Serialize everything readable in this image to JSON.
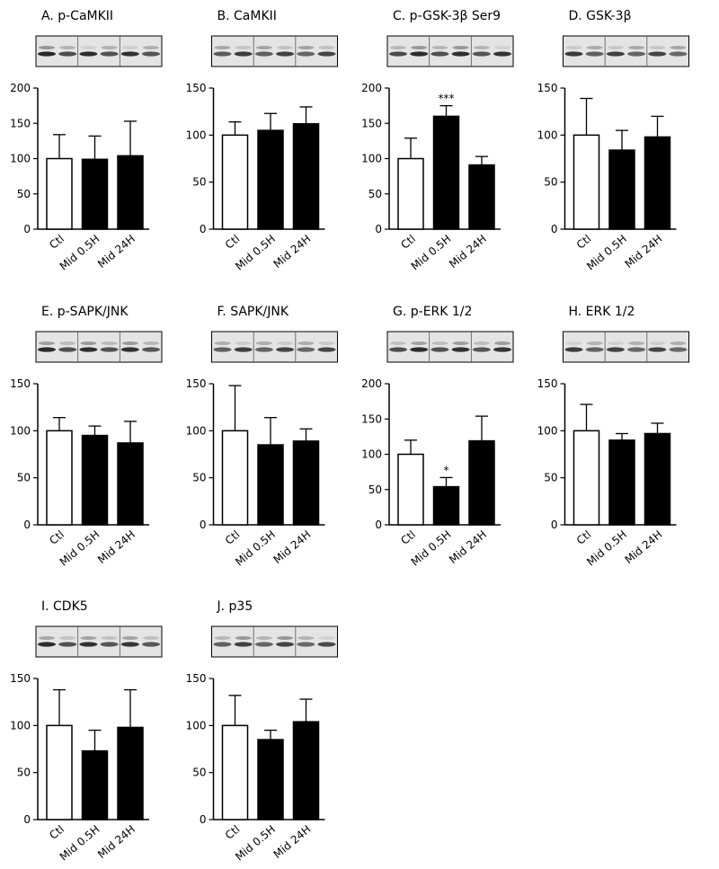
{
  "chart_data": [
    {
      "type": "bar",
      "title": "A. p-CaMKII",
      "categories": [
        "Ctl",
        "Mid 0.5H",
        "Mid 24H"
      ],
      "values": [
        100,
        99,
        104
      ],
      "errors": [
        34,
        33,
        49
      ],
      "colors": [
        "#ffffff",
        "#000000",
        "#000000"
      ],
      "significance": [
        null,
        null,
        null
      ],
      "ylim": [
        0,
        200
      ],
      "yticks": [
        0,
        50,
        100,
        150,
        200
      ]
    },
    {
      "type": "bar",
      "title": "B. CaMKII",
      "categories": [
        "Ctl",
        "Mid 0.5H",
        "Mid 24H"
      ],
      "values": [
        100,
        105,
        112
      ],
      "errors": [
        14,
        18,
        18
      ],
      "colors": [
        "#ffffff",
        "#000000",
        "#000000"
      ],
      "significance": [
        null,
        null,
        null
      ],
      "ylim": [
        0,
        150
      ],
      "yticks": [
        0,
        50,
        100,
        150
      ]
    },
    {
      "type": "bar",
      "title": "C. p-GSK-3β Ser9",
      "categories": [
        "Ctl",
        "Mid 0.5H",
        "Mid 24H"
      ],
      "values": [
        100,
        160,
        91
      ],
      "errors": [
        29,
        15,
        12
      ],
      "colors": [
        "#ffffff",
        "#000000",
        "#000000"
      ],
      "significance": [
        null,
        "***",
        null
      ],
      "ylim": [
        0,
        200
      ],
      "yticks": [
        0,
        50,
        100,
        150,
        200
      ]
    },
    {
      "type": "bar",
      "title": "D. GSK-3β",
      "categories": [
        "Ctl",
        "Mid 0.5H",
        "Mid 24H"
      ],
      "values": [
        100,
        84,
        98
      ],
      "errors": [
        39,
        21,
        22
      ],
      "colors": [
        "#ffffff",
        "#000000",
        "#000000"
      ],
      "significance": [
        null,
        null,
        null
      ],
      "ylim": [
        0,
        150
      ],
      "yticks": [
        0,
        50,
        100,
        150
      ]
    },
    {
      "type": "bar",
      "title": "E. p-SAPK/JNK",
      "categories": [
        "Ctl",
        "Mid 0.5H",
        "Mid 24H"
      ],
      "values": [
        100,
        95,
        87
      ],
      "errors": [
        14,
        10,
        23
      ],
      "colors": [
        "#ffffff",
        "#000000",
        "#000000"
      ],
      "significance": [
        null,
        null,
        null
      ],
      "ylim": [
        0,
        150
      ],
      "yticks": [
        0,
        50,
        100,
        150
      ]
    },
    {
      "type": "bar",
      "title": "F. SAPK/JNK",
      "categories": [
        "Ctl",
        "Mid 0.5H",
        "Mid 24H"
      ],
      "values": [
        100,
        85,
        89
      ],
      "errors": [
        48,
        29,
        13
      ],
      "colors": [
        "#ffffff",
        "#000000",
        "#000000"
      ],
      "significance": [
        null,
        null,
        null
      ],
      "ylim": [
        0,
        150
      ],
      "yticks": [
        0,
        50,
        100,
        150
      ]
    },
    {
      "type": "bar",
      "title": "G. p-ERK 1/2",
      "categories": [
        "Ctl",
        "Mid 0.5H",
        "Mid 24H"
      ],
      "values": [
        100,
        54,
        119
      ],
      "errors": [
        20,
        13,
        35
      ],
      "colors": [
        "#ffffff",
        "#000000",
        "#000000"
      ],
      "significance": [
        null,
        "*",
        null
      ],
      "ylim": [
        0,
        200
      ],
      "yticks": [
        0,
        50,
        100,
        150,
        200
      ]
    },
    {
      "type": "bar",
      "title": "H. ERK 1/2",
      "categories": [
        "Ctl",
        "Mid 0.5H",
        "Mid 24H"
      ],
      "values": [
        100,
        90,
        97
      ],
      "errors": [
        28,
        7,
        11
      ],
      "colors": [
        "#ffffff",
        "#000000",
        "#000000"
      ],
      "significance": [
        null,
        null,
        null
      ],
      "ylim": [
        0,
        150
      ],
      "yticks": [
        0,
        50,
        100,
        150
      ]
    },
    {
      "type": "bar",
      "title": "I. CDK5",
      "categories": [
        "Ctl",
        "Mid 0.5H",
        "Mid 24H"
      ],
      "values": [
        100,
        73,
        98
      ],
      "errors": [
        38,
        22,
        40
      ],
      "colors": [
        "#ffffff",
        "#000000",
        "#000000"
      ],
      "significance": [
        null,
        null,
        null
      ],
      "ylim": [
        0,
        150
      ],
      "yticks": [
        0,
        50,
        100,
        150
      ]
    },
    {
      "type": "bar",
      "title": "J. p35",
      "categories": [
        "Ctl",
        "Mid 0.5H",
        "Mid 24H"
      ],
      "values": [
        100,
        85,
        104
      ],
      "errors": [
        32,
        10,
        24
      ],
      "colors": [
        "#ffffff",
        "#000000",
        "#000000"
      ],
      "significance": [
        null,
        null,
        null
      ],
      "ylim": [
        0,
        150
      ],
      "yticks": [
        0,
        50,
        100,
        150
      ]
    }
  ]
}
